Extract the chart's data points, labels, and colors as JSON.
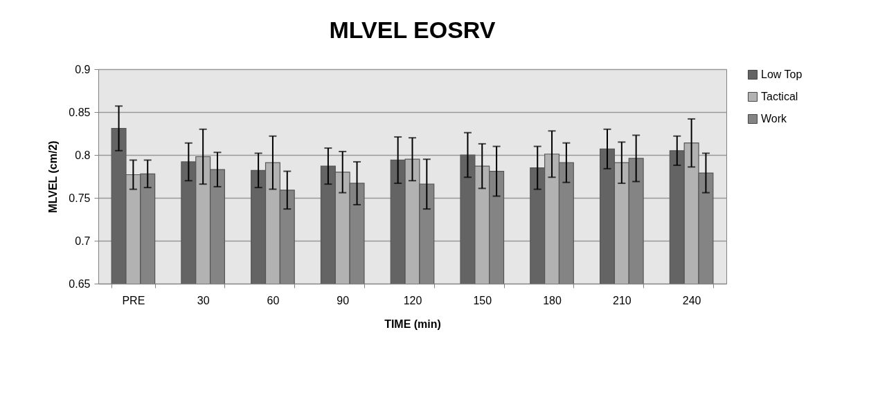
{
  "chart_data": {
    "type": "bar",
    "title": "MLVEL EOSRV",
    "xlabel": "TIME (min)",
    "ylabel": "MLVEL (cm/2)",
    "categories": [
      "PRE",
      "30",
      "60",
      "90",
      "120",
      "150",
      "180",
      "210",
      "240"
    ],
    "series": [
      {
        "name": "Low Top",
        "color": "#646464",
        "values": [
          0.831,
          0.792,
          0.782,
          0.787,
          0.794,
          0.8,
          0.785,
          0.807,
          0.805
        ],
        "errors": [
          0.026,
          0.022,
          0.02,
          0.021,
          0.027,
          0.026,
          0.025,
          0.023,
          0.017
        ]
      },
      {
        "name": "Tactical",
        "color": "#b2b2b2",
        "values": [
          0.777,
          0.798,
          0.791,
          0.78,
          0.795,
          0.787,
          0.801,
          0.791,
          0.814
        ],
        "errors": [
          0.017,
          0.032,
          0.031,
          0.024,
          0.025,
          0.026,
          0.027,
          0.024,
          0.028
        ]
      },
      {
        "name": "Work",
        "color": "#848484",
        "values": [
          0.778,
          0.783,
          0.759,
          0.767,
          0.766,
          0.781,
          0.791,
          0.796,
          0.779
        ],
        "errors": [
          0.016,
          0.02,
          0.022,
          0.025,
          0.029,
          0.029,
          0.023,
          0.027,
          0.023
        ]
      }
    ],
    "ylim": [
      0.65,
      0.9
    ],
    "yticks": [
      0.65,
      {
        "value": 0.7,
        "label": "0.7"
      },
      0.75,
      {
        "value": 0.8,
        "label": "0.8"
      },
      0.85,
      {
        "value": 0.9,
        "label": "0.9"
      }
    ],
    "grid": "y",
    "legend": "right"
  }
}
